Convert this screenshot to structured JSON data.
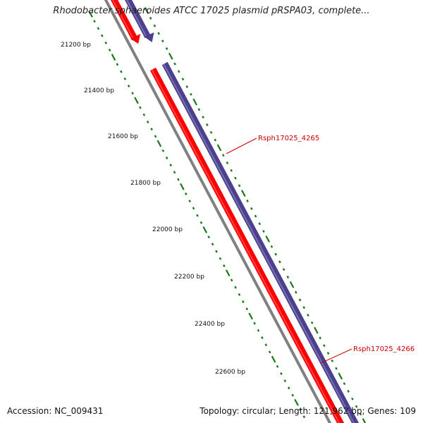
{
  "title": "Rhodobacter sphaeroides ATCC 17025 plasmid pRSPA03, complete...",
  "ruler": {
    "ticks": [
      {
        "bp": 21200,
        "label": "21200 bp"
      },
      {
        "bp": 21400,
        "label": "21400 bp"
      },
      {
        "bp": 21600,
        "label": "21600 bp"
      },
      {
        "bp": 21800,
        "label": "21800 bp"
      },
      {
        "bp": 22000,
        "label": "22000 bp"
      },
      {
        "bp": 22200,
        "label": "22200 bp"
      },
      {
        "bp": 22400,
        "label": "22400 bp"
      },
      {
        "bp": 22600,
        "label": "22600 bp"
      }
    ]
  },
  "genes": [
    {
      "label": "Rsph17025_4265",
      "color": "#cc0000"
    },
    {
      "label": "Rsph17025_4266",
      "color": "#cc0000"
    }
  ],
  "colors": {
    "forward_track": "#ff0000",
    "reverse_track": "#4b3f8f",
    "backbone": "#808080",
    "ruler": "#1a7a1a",
    "label": "#cc0000"
  },
  "footer": {
    "accession": "Accession: NC_009431",
    "stats": "Topology: circular; Length: 121,962 bp; Genes: 109"
  }
}
